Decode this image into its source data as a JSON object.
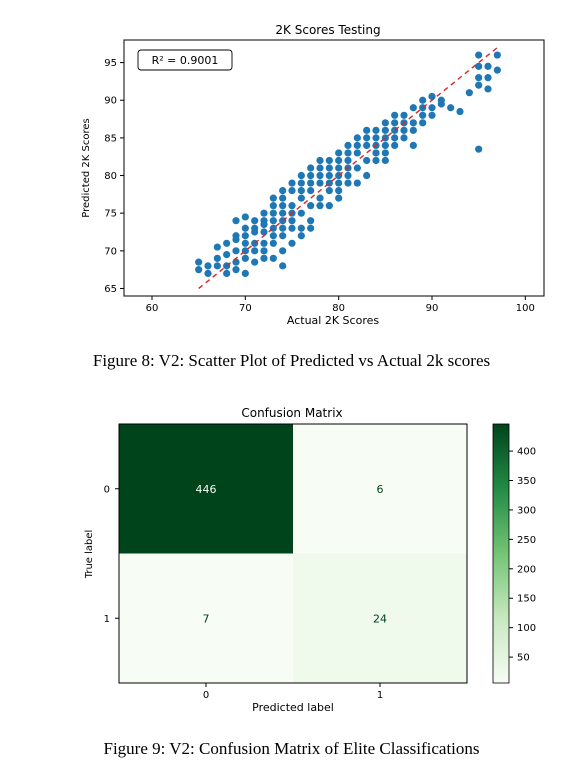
{
  "figures": [
    {
      "caption": "Figure 8: V2: Scatter Plot of Predicted vs Actual 2k scores"
    },
    {
      "caption": "Figure 9: V2: Confusion Matrix of Elite Classifications"
    }
  ],
  "chart_data": [
    {
      "type": "scatter",
      "title": "2K Scores Testing",
      "xlabel": "Actual 2K  Scores",
      "ylabel": "Predicted 2K Scores",
      "xlim": [
        57,
        102
      ],
      "ylim": [
        64,
        98
      ],
      "xticks": [
        60,
        70,
        80,
        90,
        100
      ],
      "yticks": [
        65,
        70,
        75,
        80,
        85,
        90,
        95
      ],
      "annotation": "R² = 0.9001",
      "point_color": "#1f77b4",
      "reference_line": {
        "x": [
          65,
          97
        ],
        "y": [
          65,
          97
        ],
        "color": "#d62728",
        "style": "dashed"
      },
      "points": [
        [
          65,
          68.5
        ],
        [
          65,
          67.5
        ],
        [
          66,
          68
        ],
        [
          66,
          67
        ],
        [
          67,
          69
        ],
        [
          67,
          68
        ],
        [
          67,
          70.5
        ],
        [
          68,
          68
        ],
        [
          68,
          69.5
        ],
        [
          68,
          71
        ],
        [
          68,
          67
        ],
        [
          69,
          70
        ],
        [
          69,
          68.5
        ],
        [
          69,
          72
        ],
        [
          69,
          74
        ],
        [
          69,
          71.5
        ],
        [
          69,
          67.5
        ],
        [
          70,
          70
        ],
        [
          70,
          72
        ],
        [
          70,
          73
        ],
        [
          70,
          74.5
        ],
        [
          70,
          71
        ],
        [
          70,
          69
        ],
        [
          70,
          67
        ],
        [
          71,
          70
        ],
        [
          71,
          72.5
        ],
        [
          71,
          74
        ],
        [
          71,
          73
        ],
        [
          71,
          71
        ],
        [
          71,
          68.5
        ],
        [
          72,
          71
        ],
        [
          72,
          72.5
        ],
        [
          72,
          74
        ],
        [
          72,
          75
        ],
        [
          72,
          73.5
        ],
        [
          72,
          70
        ],
        [
          72,
          69
        ],
        [
          73,
          72
        ],
        [
          73,
          74
        ],
        [
          73,
          76
        ],
        [
          73,
          77
        ],
        [
          73,
          75
        ],
        [
          73,
          71
        ],
        [
          73,
          69
        ],
        [
          73,
          73
        ],
        [
          74,
          73
        ],
        [
          74,
          75
        ],
        [
          74,
          77
        ],
        [
          74,
          78
        ],
        [
          74,
          76
        ],
        [
          74,
          72
        ],
        [
          74,
          70
        ],
        [
          74,
          68
        ],
        [
          74,
          74
        ],
        [
          75,
          74
        ],
        [
          75,
          76
        ],
        [
          75,
          78
        ],
        [
          75,
          75
        ],
        [
          75,
          73
        ],
        [
          75,
          71
        ],
        [
          75,
          79
        ],
        [
          76,
          75
        ],
        [
          76,
          77
        ],
        [
          76,
          79
        ],
        [
          76,
          80
        ],
        [
          76,
          78
        ],
        [
          76,
          73
        ],
        [
          76,
          72
        ],
        [
          77,
          76
        ],
        [
          77,
          78
        ],
        [
          77,
          80
        ],
        [
          77,
          81
        ],
        [
          77,
          79
        ],
        [
          77,
          74
        ],
        [
          77,
          73
        ],
        [
          78,
          77
        ],
        [
          78,
          79
        ],
        [
          78,
          81
        ],
        [
          78,
          82
        ],
        [
          78,
          80
        ],
        [
          78,
          76
        ],
        [
          79,
          78
        ],
        [
          79,
          80
        ],
        [
          79,
          82
        ],
        [
          79,
          81
        ],
        [
          79,
          79
        ],
        [
          79,
          76
        ],
        [
          80,
          79
        ],
        [
          80,
          81
        ],
        [
          80,
          83
        ],
        [
          80,
          82
        ],
        [
          80,
          80
        ],
        [
          80,
          78
        ],
        [
          80,
          77
        ],
        [
          81,
          80
        ],
        [
          81,
          82
        ],
        [
          81,
          84
        ],
        [
          81,
          83
        ],
        [
          81,
          81
        ],
        [
          81,
          79
        ],
        [
          82,
          81
        ],
        [
          82,
          83
        ],
        [
          82,
          85
        ],
        [
          82,
          84
        ],
        [
          82,
          79
        ],
        [
          83,
          82
        ],
        [
          83,
          84
        ],
        [
          83,
          86
        ],
        [
          83,
          85
        ],
        [
          83,
          80
        ],
        [
          84,
          83
        ],
        [
          84,
          85
        ],
        [
          84,
          86
        ],
        [
          84,
          84
        ],
        [
          84,
          82
        ],
        [
          85,
          84
        ],
        [
          85,
          86
        ],
        [
          85,
          87
        ],
        [
          85,
          85
        ],
        [
          85,
          83
        ],
        [
          85,
          82
        ],
        [
          86,
          85
        ],
        [
          86,
          87
        ],
        [
          86,
          88
        ],
        [
          86,
          86
        ],
        [
          86,
          84
        ],
        [
          87,
          86
        ],
        [
          87,
          88
        ],
        [
          87,
          87
        ],
        [
          87,
          85
        ],
        [
          88,
          87
        ],
        [
          88,
          89
        ],
        [
          88,
          86
        ],
        [
          88,
          84
        ],
        [
          89,
          88
        ],
        [
          89,
          90
        ],
        [
          89,
          89
        ],
        [
          89,
          87
        ],
        [
          90,
          89
        ],
        [
          90,
          90.5
        ],
        [
          90,
          88
        ],
        [
          91,
          90
        ],
        [
          91,
          89.5
        ],
        [
          92,
          89
        ],
        [
          93,
          88.5
        ],
        [
          94,
          91
        ],
        [
          95,
          93
        ],
        [
          95,
          94.5
        ],
        [
          95,
          96
        ],
        [
          95,
          92
        ],
        [
          96,
          94.5
        ],
        [
          96,
          93
        ],
        [
          96,
          91.5
        ],
        [
          97,
          96
        ],
        [
          97,
          94
        ],
        [
          95,
          83.5
        ]
      ]
    },
    {
      "type": "heatmap",
      "title": "Confusion Matrix",
      "xlabel": "Predicted label",
      "ylabel": "True label",
      "x_ticklabels": [
        "0",
        "1"
      ],
      "y_ticklabels": [
        "0",
        "1"
      ],
      "values": [
        [
          446,
          6
        ],
        [
          7,
          24
        ]
      ],
      "colormap": "Greens",
      "colorbar_ticks": [
        50,
        100,
        150,
        200,
        250,
        300,
        350,
        400
      ],
      "colorbar_range": [
        6,
        446
      ]
    }
  ]
}
